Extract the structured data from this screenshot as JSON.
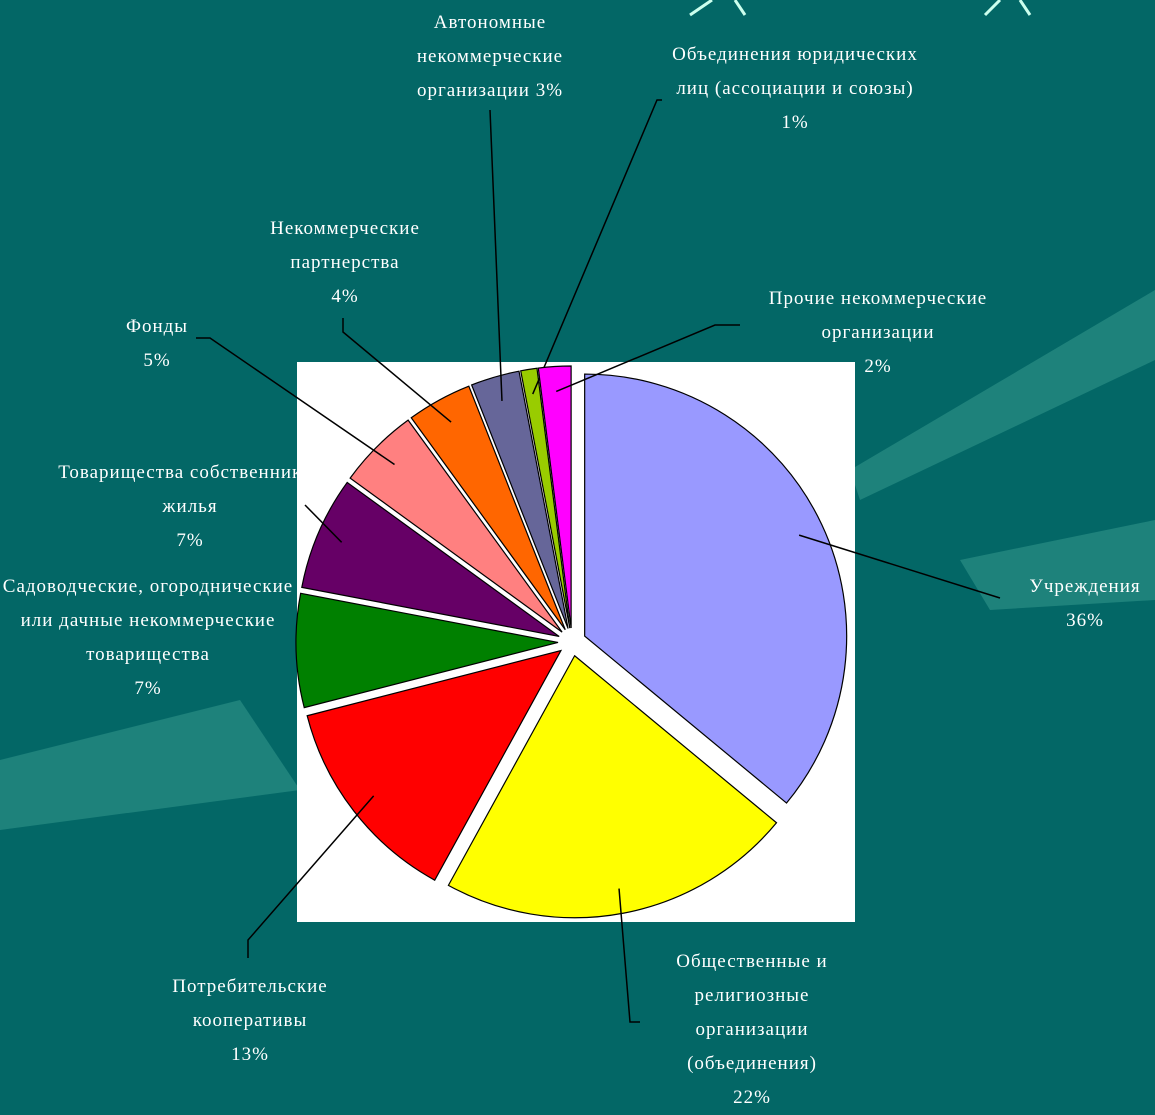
{
  "chart_data": {
    "type": "pie",
    "categories": [
      "Учреждения",
      "Общественные и религиозные организации (объединения)",
      "Потребительские кооперативы",
      "Садоводческие, огороднические или дачные некоммерческие товарищества",
      "Товарищества собственников жилья",
      "Фонды",
      "Некоммерческие партнерства",
      "Автономные некоммерческие организации",
      "Объединения юридических лиц (ассоциации и союзы)",
      "Прочие некоммерческие организации"
    ],
    "values": [
      36,
      22,
      13,
      7,
      7,
      5,
      4,
      3,
      1,
      2
    ],
    "value_labels": [
      "36%",
      "22%",
      "13%",
      "7%",
      "7%",
      "5%",
      "4%",
      "3%",
      "1%",
      "2%"
    ],
    "colors": [
      "#9999ff",
      "#ffff00",
      "#ff0000",
      "#008000",
      "#660066",
      "#ff8080",
      "#ff6600",
      "#666699",
      "#99cc00",
      "#ff00ff"
    ]
  }
}
